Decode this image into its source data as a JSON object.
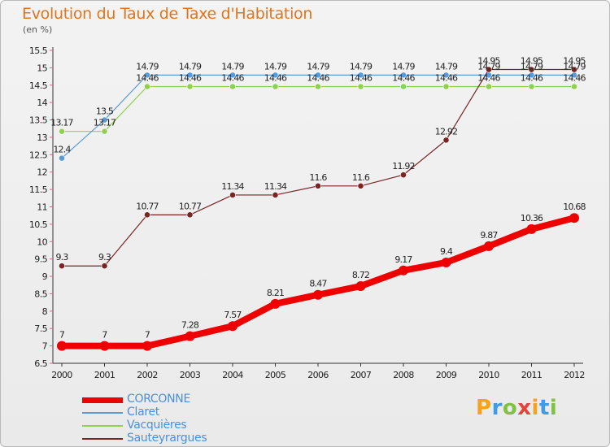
{
  "title": "Evolution du Taux de Taxe d'Habitation",
  "subtitle": "(en %)",
  "logo": {
    "letters": [
      "P",
      "r",
      "o",
      "x",
      "i",
      "t",
      "i"
    ],
    "colors": [
      "#f7a21b",
      "#3d9be9",
      "#7fc241",
      "#e8423b",
      "#f7a21b",
      "#3d9be9",
      "#7fc241"
    ]
  },
  "chart_data": {
    "type": "line",
    "x": [
      "2000",
      "2001",
      "2002",
      "2003",
      "2004",
      "2005",
      "2006",
      "2007",
      "2008",
      "2009",
      "2010",
      "2011",
      "2012"
    ],
    "ylim": [
      6.5,
      15.5
    ],
    "yticks": [
      "6.5",
      "7",
      "7.5",
      "8",
      "8.5",
      "9",
      "9.5",
      "10",
      "10.5",
      "11",
      "11.5",
      "12",
      "12.5",
      "13",
      "13.5",
      "14",
      "14.5",
      "15",
      "15.5"
    ],
    "grid": false,
    "legend_position": "bottom-left",
    "series": [
      {
        "name": "CORCONNE",
        "color": "#ee0000",
        "values": [
          7,
          7,
          7,
          7.28,
          7.57,
          8.21,
          8.47,
          8.72,
          9.17,
          9.4,
          9.87,
          10.36,
          10.68
        ]
      },
      {
        "name": "Claret",
        "color": "#5b9ad5",
        "values": [
          12.4,
          13.5,
          14.79,
          14.79,
          14.79,
          14.79,
          14.79,
          14.79,
          14.79,
          14.79,
          14.79,
          14.79,
          14.79
        ]
      },
      {
        "name": "Vacquières",
        "color": "#8fd14f",
        "values": [
          13.17,
          13.17,
          14.46,
          14.46,
          14.46,
          14.46,
          14.46,
          14.46,
          14.46,
          14.46,
          14.46,
          14.46,
          14.46
        ]
      },
      {
        "name": "Sauteyrargues",
        "color": "#7a2424",
        "values": [
          9.3,
          9.3,
          10.77,
          10.77,
          11.34,
          11.34,
          11.6,
          11.6,
          11.92,
          12.92,
          14.95,
          14.95,
          14.95
        ]
      }
    ]
  }
}
